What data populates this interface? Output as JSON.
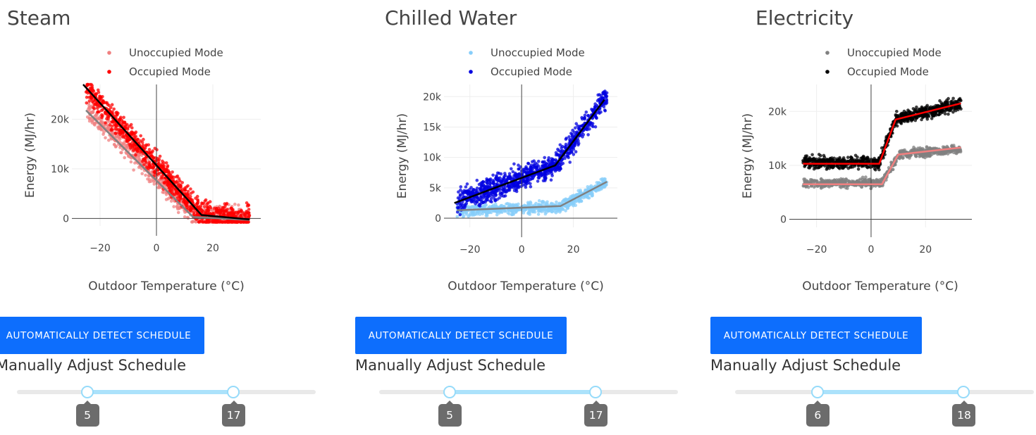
{
  "panels": [
    {
      "title": "Steam",
      "button_label": "AUTOMATICALLY DETECT SCHEDULE",
      "manual_label": "Manually Adjust Schedule",
      "slider": {
        "min": 0,
        "max": 23,
        "low": 5,
        "high": 17,
        "low_label": "5",
        "high_label": "17"
      }
    },
    {
      "title": "Chilled Water",
      "button_label": "AUTOMATICALLY DETECT SCHEDULE",
      "manual_label": "Manually Adjust Schedule",
      "slider": {
        "min": 0,
        "max": 23,
        "low": 5,
        "high": 17,
        "low_label": "5",
        "high_label": "17"
      }
    },
    {
      "title": "Electricity",
      "button_label": "AUTOMATICALLY DETECT SCHEDULE",
      "manual_label": "Manually Adjust Schedule",
      "slider": {
        "min": 0,
        "max": 23,
        "low": 6,
        "high": 18,
        "low_label": "6",
        "high_label": "18"
      }
    }
  ],
  "chart_data": [
    {
      "type": "scatter",
      "title": "Steam",
      "xlabel": "Outdoor Temperature (°C)",
      "ylabel": "Energy (MJ/hr)",
      "xlim": [
        -30,
        37
      ],
      "ylim": [
        -1500,
        27000
      ],
      "xticks": [
        -20,
        0,
        20
      ],
      "xtick_labels": [
        "−20",
        "0",
        "20"
      ],
      "yticks": [
        0,
        10000,
        20000
      ],
      "ytick_labels": [
        "0",
        "10k",
        "20k"
      ],
      "grid": true,
      "legend_position": "top",
      "series": [
        {
          "name": "Unoccupied Mode",
          "color": "#f08080",
          "cloud": {
            "x_range": [
              -25,
              33
            ],
            "spread": 2200,
            "count": 750,
            "centre": [
              [
                -25,
                22000
              ],
              [
                15,
                0
              ],
              [
                33,
                0
              ]
            ]
          }
        },
        {
          "name": "Occupied Mode",
          "color": "#ff0000",
          "cloud": {
            "x_range": [
              -25,
              33
            ],
            "spread": 2600,
            "count": 950,
            "centre": [
              [
                -26,
                27000
              ],
              [
                16,
                700
              ],
              [
                33,
                -200
              ]
            ]
          }
        }
      ],
      "fit_lines": [
        {
          "color": "#808080",
          "points": [
            [
              -25,
              21800
            ],
            [
              13,
              300
            ],
            [
              33,
              -300
            ]
          ]
        },
        {
          "color": "#000000",
          "points": [
            [
              -26,
              27000
            ],
            [
              16,
              700
            ],
            [
              33,
              -200
            ]
          ]
        }
      ]
    },
    {
      "type": "scatter",
      "title": "Chilled Water",
      "xlabel": "Outdoor Temperature (°C)",
      "ylabel": "Energy (MJ/hr)",
      "xlim": [
        -30,
        37
      ],
      "ylim": [
        -1500,
        22000
      ],
      "xticks": [
        -20,
        0,
        20
      ],
      "xtick_labels": [
        "−20",
        "0",
        "20"
      ],
      "yticks": [
        0,
        5000,
        10000,
        15000,
        20000
      ],
      "ytick_labels": [
        "0",
        "5k",
        "10k",
        "15k",
        "20k"
      ],
      "grid": true,
      "legend_position": "top",
      "series": [
        {
          "name": "Unoccupied Mode",
          "color": "#87cefa",
          "cloud": {
            "x_range": [
              -25,
              33
            ],
            "spread": 900,
            "count": 700,
            "centre": [
              [
                -25,
                1200
              ],
              [
                15,
                1800
              ],
              [
                33,
                6000
              ]
            ]
          }
        },
        {
          "name": "Occupied Mode",
          "color": "#0000e0",
          "cloud": {
            "x_range": [
              -25,
              33
            ],
            "spread": 1900,
            "count": 950,
            "centre": [
              [
                -26,
                2500
              ],
              [
                13,
                8700
              ],
              [
                32,
                19500
              ]
            ]
          }
        }
      ],
      "fit_lines": [
        {
          "color": "#808080",
          "points": [
            [
              -25,
              1300
            ],
            [
              15,
              2000
            ],
            [
              33,
              6000
            ]
          ]
        },
        {
          "color": "#000000",
          "points": [
            [
              -26,
              2500
            ],
            [
              13,
              8700
            ],
            [
              32,
              19500
            ]
          ]
        }
      ]
    },
    {
      "type": "scatter",
      "title": "Electricity",
      "xlabel": "Outdoor Temperature (°C)",
      "ylabel": "Energy (MJ/hr)",
      "xlim": [
        -30,
        37
      ],
      "ylim": [
        -1500,
        25000
      ],
      "xticks": [
        -20,
        0,
        20
      ],
      "xtick_labels": [
        "−20",
        "0",
        "20"
      ],
      "yticks": [
        0,
        10000,
        20000
      ],
      "ytick_labels": [
        "0",
        "10k",
        "20k"
      ],
      "grid": true,
      "legend_position": "top",
      "series": [
        {
          "name": "Unoccupied Mode",
          "color": "#808080",
          "cloud": {
            "x_range": [
              -25,
              33
            ],
            "spread": 800,
            "count": 750,
            "centre": [
              [
                -25,
                6700
              ],
              [
                4,
                6700
              ],
              [
                10,
                12000
              ],
              [
                33,
                13000
              ]
            ]
          }
        },
        {
          "name": "Occupied Mode",
          "color": "#000000",
          "cloud": {
            "x_range": [
              -25,
              33
            ],
            "spread": 1100,
            "count": 900,
            "centre": [
              [
                -25,
                10500
              ],
              [
                3,
                10500
              ],
              [
                9,
                18500
              ],
              [
                33,
                21500
              ]
            ]
          }
        }
      ],
      "fit_lines": [
        {
          "color": "#f08080",
          "points": [
            [
              -25,
              6500
            ],
            [
              4,
              6500
            ],
            [
              10,
              12000
            ],
            [
              33,
              13300
            ]
          ]
        },
        {
          "color": "#ff0000",
          "points": [
            [
              -25,
              10300
            ],
            [
              3,
              10300
            ],
            [
              9,
              18500
            ],
            [
              33,
              21500
            ]
          ]
        }
      ]
    }
  ]
}
